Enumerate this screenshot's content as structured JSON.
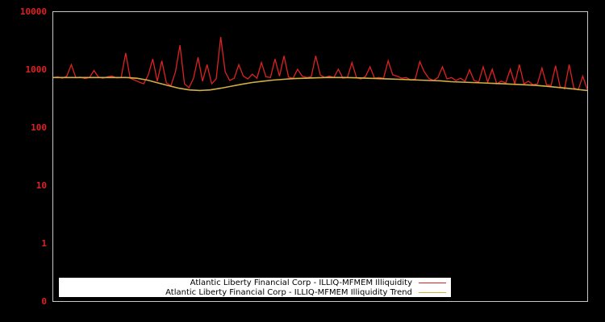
{
  "chart_data": {
    "type": "line",
    "title": "",
    "xlabel": "",
    "ylabel": "",
    "yscale": "log",
    "ylim": [
      0.1,
      10000
    ],
    "y_ticks": [
      "10000",
      "1000",
      "100",
      "10",
      "1",
      "0"
    ],
    "grid": false,
    "legend_position": "bottom-inside",
    "series": [
      {
        "name": "Atlantic Liberty Financial Corp - ILLIQ-MFMEM Illiquidity",
        "color": "#dd2222",
        "values_approx": [
          720,
          740,
          700,
          760,
          1200,
          710,
          730,
          690,
          720,
          950,
          730,
          700,
          740,
          760,
          710,
          720,
          1900,
          700,
          650,
          600,
          560,
          800,
          1500,
          620,
          1400,
          580,
          520,
          900,
          2600,
          560,
          480,
          700,
          1600,
          620,
          1200,
          560,
          680,
          3600,
          900,
          640,
          700,
          1200,
          760,
          680,
          820,
          700,
          1300,
          740,
          720,
          1500,
          760,
          1700,
          730,
          700,
          1000,
          760,
          720,
          740,
          1700,
          800,
          720,
          760,
          720,
          1000,
          700,
          720,
          1300,
          720,
          680,
          750,
          1100,
          700,
          720,
          700,
          1400,
          800,
          760,
          700,
          720,
          650,
          680,
          1350,
          900,
          700,
          640,
          720,
          1100,
          680,
          720,
          640,
          700,
          620,
          980,
          640,
          600,
          1100,
          600,
          1000,
          560,
          620,
          580,
          1000,
          560,
          1200,
          560,
          620,
          540,
          560,
          1050,
          540,
          520,
          1150,
          500,
          460,
          1200,
          480,
          440,
          760,
          450
        ]
      },
      {
        "name": "Atlantic Liberty Financial Corp - ILLIQ-MFMEM Illiquidity Trend",
        "color": "#d4b040",
        "values_approx": [
          720,
          720,
          720,
          720,
          720,
          720,
          720,
          720,
          700,
          650,
          580,
          520,
          470,
          440,
          430,
          440,
          470,
          510,
          550,
          590,
          620,
          650,
          670,
          690,
          700,
          710,
          720,
          720,
          720,
          710,
          700,
          690,
          680,
          670,
          660,
          650,
          640,
          630,
          610,
          600,
          590,
          580,
          570,
          560,
          550,
          540,
          530,
          510,
          490,
          470,
          450,
          430
        ]
      }
    ]
  },
  "legend": {
    "items": [
      {
        "label": "Atlantic Liberty Financial Corp - ILLIQ-MFMEM Illiquidity",
        "color": "#dd2222"
      },
      {
        "label": "Atlantic Liberty Financial Corp - ILLIQ-MFMEM Illiquidity Trend",
        "color": "#d4b040"
      }
    ]
  }
}
